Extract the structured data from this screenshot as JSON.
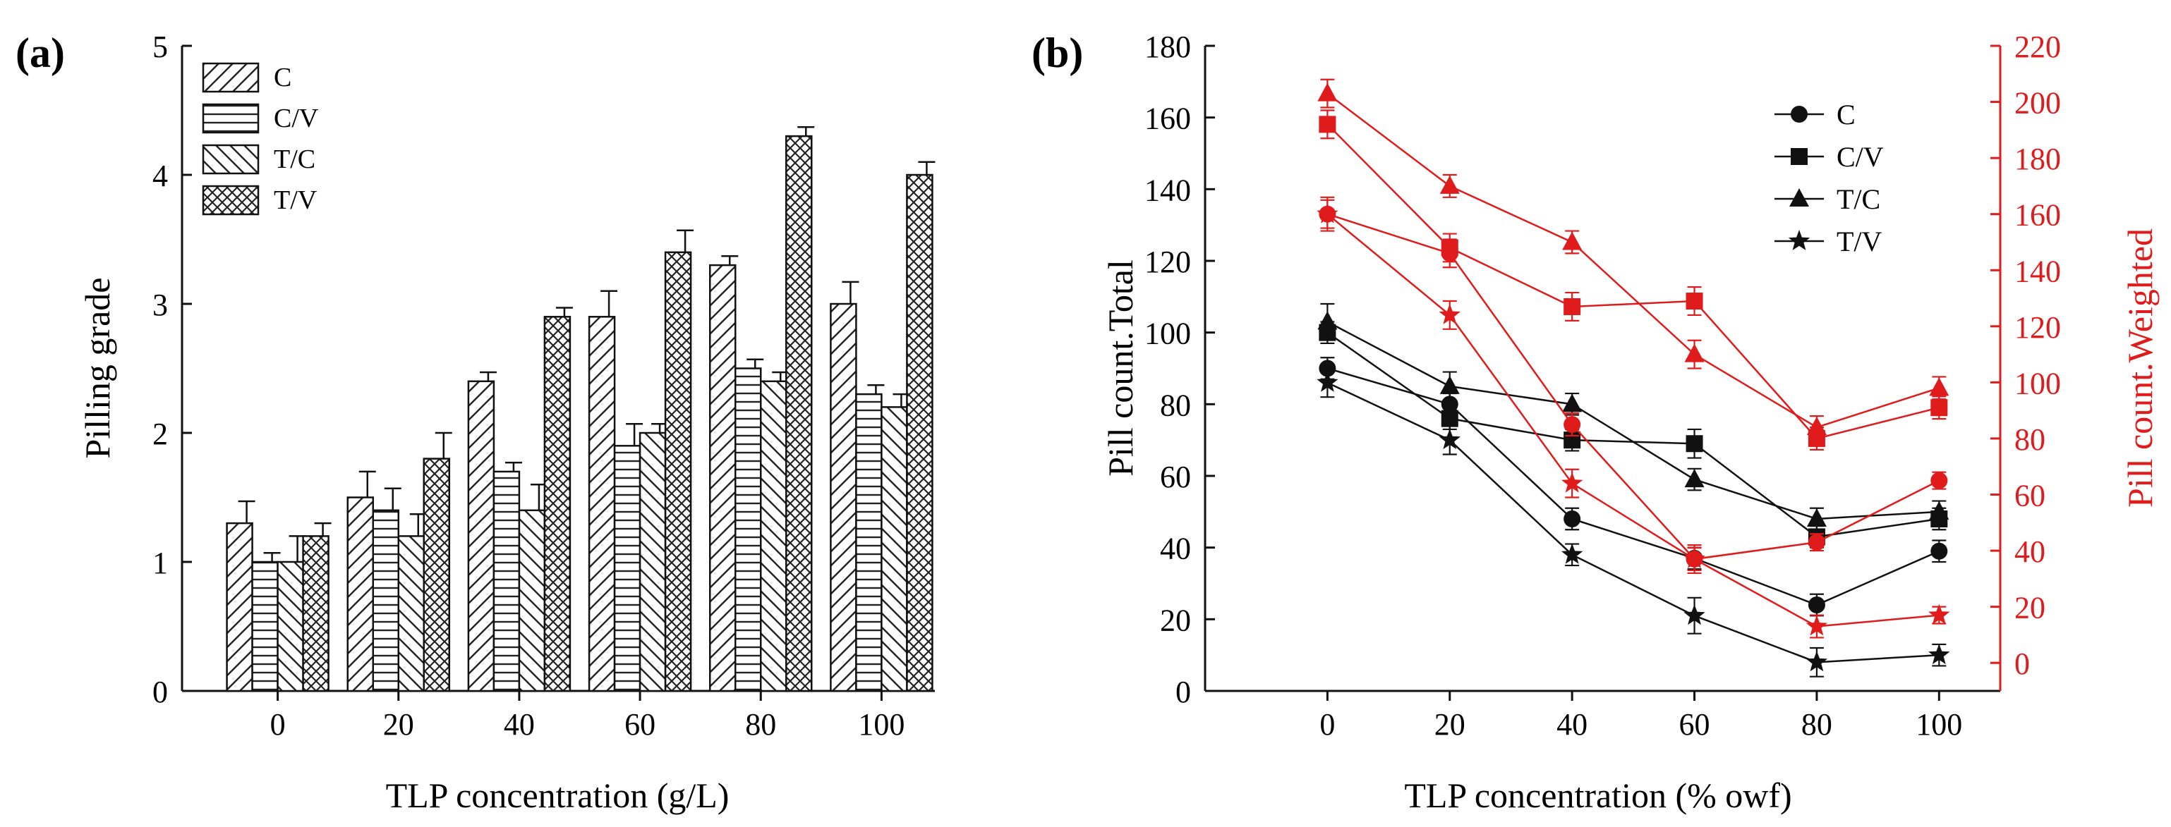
{
  "panels": {
    "a": {
      "label": "(a)"
    },
    "b": {
      "label": "(b)"
    }
  },
  "colors": {
    "axis": "#111111",
    "weighted": "#e01b1b",
    "bar_fill": "#ffffff",
    "hatch": "#222222"
  },
  "chart_data": [
    {
      "type": "bar",
      "panel": "(a)",
      "title": "",
      "xlabel": "TLP concentration (g/L)",
      "ylabel": "Pilling grade",
      "categories": [
        "0",
        "20",
        "40",
        "60",
        "80",
        "100"
      ],
      "ylim": [
        0,
        5
      ],
      "yticks": [
        0,
        1,
        2,
        3,
        4,
        5
      ],
      "legend_position": "top-left",
      "series": [
        {
          "name": "C",
          "pattern": "diag-up",
          "values": [
            1.3,
            1.5,
            2.4,
            2.9,
            3.3,
            3.0
          ],
          "errors": [
            0.17,
            0.2,
            0.07,
            0.2,
            0.07,
            0.17
          ]
        },
        {
          "name": "C/V",
          "pattern": "horizontal",
          "values": [
            1.0,
            1.4,
            1.7,
            1.9,
            2.5,
            2.3
          ],
          "errors": [
            0.07,
            0.17,
            0.07,
            0.17,
            0.07,
            0.07
          ]
        },
        {
          "name": "T/C",
          "pattern": "diag-down",
          "values": [
            1.0,
            1.2,
            1.4,
            2.0,
            2.4,
            2.2
          ],
          "errors": [
            0.2,
            0.17,
            0.2,
            0.07,
            0.07,
            0.1
          ]
        },
        {
          "name": "T/V",
          "pattern": "crosshatch",
          "values": [
            1.2,
            1.8,
            2.9,
            3.4,
            4.3,
            4.0
          ],
          "errors": [
            0.1,
            0.2,
            0.07,
            0.17,
            0.07,
            0.1
          ]
        }
      ]
    },
    {
      "type": "line",
      "panel": "(b)",
      "title": "",
      "xlabel": "TLP concentration (% owf)",
      "ylabel": "Pill count.Total",
      "y2label": "Pill count.Weighted",
      "x": [
        0,
        20,
        40,
        60,
        80,
        100
      ],
      "xlim": [
        -20,
        110
      ],
      "xticks": [
        0,
        20,
        40,
        60,
        80,
        100
      ],
      "ylim": [
        0,
        180
      ],
      "yticks": [
        0,
        20,
        40,
        60,
        80,
        100,
        120,
        140,
        160,
        180
      ],
      "y2lim": [
        -10,
        220
      ],
      "y2ticks": [
        0,
        20,
        40,
        60,
        80,
        100,
        120,
        140,
        160,
        180,
        200,
        220
      ],
      "legend_position": "top-right",
      "series": [
        {
          "name": "C",
          "marker": "circle",
          "axis": "left",
          "values": [
            90,
            80,
            48,
            37,
            24,
            39
          ],
          "errors": [
            3,
            3,
            3,
            3,
            3,
            3
          ]
        },
        {
          "name": "C/V",
          "marker": "square",
          "axis": "left",
          "values": [
            100,
            76,
            70,
            69,
            43,
            48
          ],
          "errors": [
            3,
            3,
            3,
            4,
            3,
            3
          ]
        },
        {
          "name": "T/C",
          "marker": "triangle",
          "axis": "left",
          "values": [
            103,
            85,
            80,
            59,
            48,
            50
          ],
          "errors": [
            5,
            4,
            3,
            3,
            3,
            3
          ]
        },
        {
          "name": "T/V",
          "marker": "star",
          "axis": "left",
          "values": [
            86,
            70,
            38,
            21,
            8,
            10
          ],
          "errors": [
            4,
            4,
            3,
            5,
            4,
            3
          ]
        },
        {
          "name": "C weighted",
          "marker": "circle",
          "axis": "right",
          "values": [
            160,
            146,
            85,
            37,
            43,
            65
          ],
          "errors": [
            6,
            5,
            4,
            4,
            3,
            3
          ]
        },
        {
          "name": "C/V weighted",
          "marker": "square",
          "axis": "right",
          "values": [
            192,
            148,
            127,
            129,
            80,
            91
          ],
          "errors": [
            5,
            5,
            5,
            5,
            4,
            4
          ]
        },
        {
          "name": "T/C weighted",
          "marker": "triangle",
          "axis": "right",
          "values": [
            203,
            170,
            150,
            110,
            84,
            98
          ],
          "errors": [
            5,
            4,
            4,
            5,
            4,
            4
          ]
        },
        {
          "name": "T/V weighted",
          "marker": "star",
          "axis": "right",
          "values": [
            160,
            124,
            64,
            37,
            13,
            17
          ],
          "errors": [
            5,
            5,
            5,
            5,
            4,
            3
          ]
        }
      ]
    }
  ]
}
